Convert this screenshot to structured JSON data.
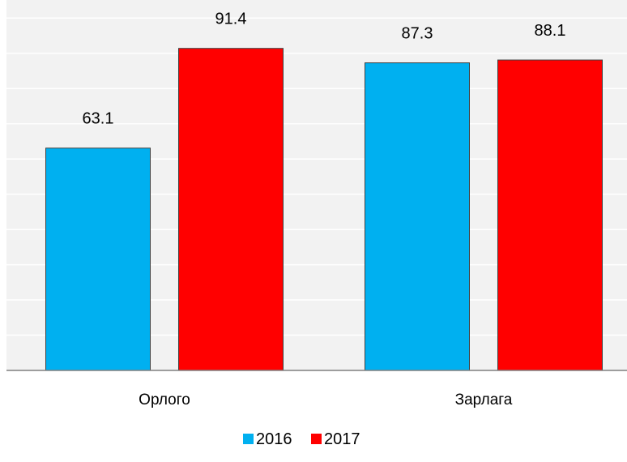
{
  "chart_data": {
    "type": "bar",
    "categories": [
      "Орлого",
      "Зарлага"
    ],
    "series": [
      {
        "name": "2016",
        "color": "#00b0f0",
        "values": [
          63.1,
          87.3
        ]
      },
      {
        "name": "2017",
        "color": "#ff0000",
        "values": [
          91.4,
          88.1
        ]
      }
    ],
    "ylim": [
      0,
      100
    ],
    "grid": true,
    "legend_position": "bottom-center",
    "plot_background": "#f2f2f2",
    "bar_edge_color": "#404040"
  }
}
